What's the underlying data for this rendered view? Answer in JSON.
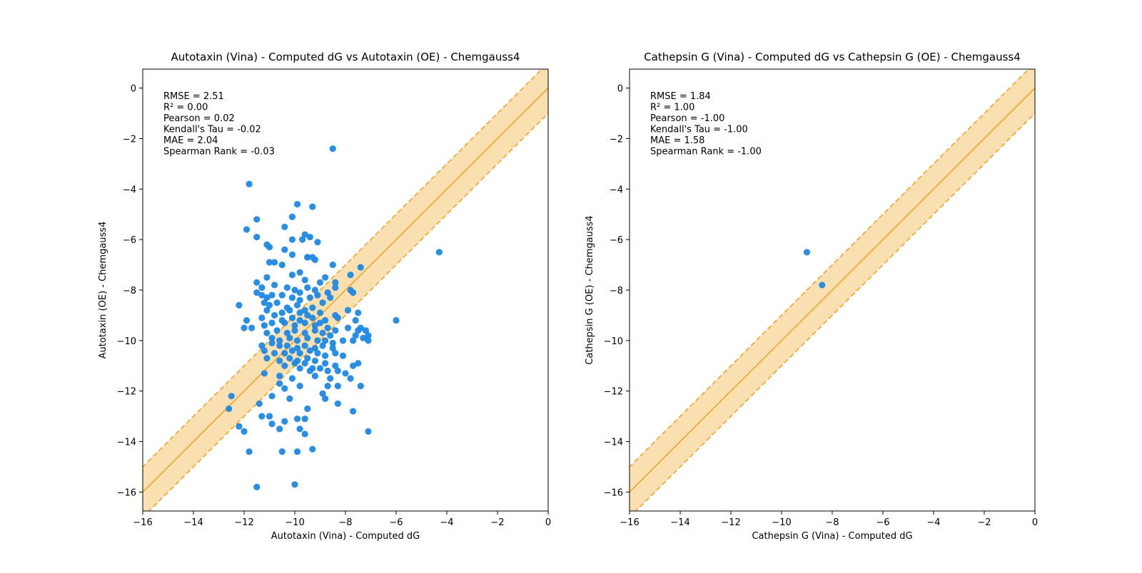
{
  "chart_data": [
    {
      "type": "scatter",
      "title": "Autotaxin (Vina) - Computed dG vs Autotaxin (OE) - Chemgauss4",
      "xlabel": "Autotaxin (Vina) - Computed dG",
      "ylabel": "Autotaxin (OE) - Chemgauss4",
      "xlim": [
        -16,
        0
      ],
      "ylim": [
        -16.75,
        0.75
      ],
      "xticks": [
        -16,
        -14,
        -12,
        -10,
        -8,
        -6,
        -4,
        -2,
        0
      ],
      "yticks": [
        -16,
        -14,
        -12,
        -10,
        -8,
        -6,
        -4,
        -2,
        0
      ],
      "grid": false,
      "identity_line": true,
      "band_width": 1,
      "colors": {
        "points": "#1e88e5",
        "band_fill": "#fae0b0",
        "line": "#f4a020"
      },
      "stats": [
        "RMSE = 2.51",
        "R² = 0.00",
        "Pearson = 0.02",
        "Kendall's Tau = -0.02",
        "MAE = 2.04",
        "Spearman Rank = -0.03"
      ],
      "points": [
        [
          -8.5,
          -2.4
        ],
        [
          -11.8,
          -3.8
        ],
        [
          -9.9,
          -4.6
        ],
        [
          -9.3,
          -4.7
        ],
        [
          -10.1,
          -5.1
        ],
        [
          -11.5,
          -5.2
        ],
        [
          -11.9,
          -5.6
        ],
        [
          -10.4,
          -5.5
        ],
        [
          -11.5,
          -5.9
        ],
        [
          -10.1,
          -6.0
        ],
        [
          -9.7,
          -6.0
        ],
        [
          -9.6,
          -5.8
        ],
        [
          -9.4,
          -5.9
        ],
        [
          -9.1,
          -6.1
        ],
        [
          -11.1,
          -6.2
        ],
        [
          -11.0,
          -6.3
        ],
        [
          -10.4,
          -6.4
        ],
        [
          -10.1,
          -6.6
        ],
        [
          -9.5,
          -6.7
        ],
        [
          -9.2,
          -6.8
        ],
        [
          -9.3,
          -6.7
        ],
        [
          -11.0,
          -6.9
        ],
        [
          -10.8,
          -6.9
        ],
        [
          -10.5,
          -7.0
        ],
        [
          -9.5,
          -6.7
        ],
        [
          -8.5,
          -7.0
        ],
        [
          -7.4,
          -7.1
        ],
        [
          -4.3,
          -6.5
        ],
        [
          -11.1,
          -7.5
        ],
        [
          -10.1,
          -7.4
        ],
        [
          -9.8,
          -7.3
        ],
        [
          -9.6,
          -7.6
        ],
        [
          -9.0,
          -7.7
        ],
        [
          -8.8,
          -7.5
        ],
        [
          -8.4,
          -7.7
        ],
        [
          -7.8,
          -7.4
        ],
        [
          -11.5,
          -7.7
        ],
        [
          -11.3,
          -7.9
        ],
        [
          -10.8,
          -7.8
        ],
        [
          -10.3,
          -7.9
        ],
        [
          -10.0,
          -8.0
        ],
        [
          -9.8,
          -8.1
        ],
        [
          -9.5,
          -7.9
        ],
        [
          -9.2,
          -8.0
        ],
        [
          -8.7,
          -8.1
        ],
        [
          -8.4,
          -7.9
        ],
        [
          -7.8,
          -8.0
        ],
        [
          -7.7,
          -8.1
        ],
        [
          -11.5,
          -8.1
        ],
        [
          -11.3,
          -8.2
        ],
        [
          -11.1,
          -8.3
        ],
        [
          -10.9,
          -8.2
        ],
        [
          -10.5,
          -8.2
        ],
        [
          -10.1,
          -8.3
        ],
        [
          -9.8,
          -8.4
        ],
        [
          -9.4,
          -8.3
        ],
        [
          -9.1,
          -8.2
        ],
        [
          -8.6,
          -8.3
        ],
        [
          -12.2,
          -8.6
        ],
        [
          -11.2,
          -8.5
        ],
        [
          -11.0,
          -8.6
        ],
        [
          -10.7,
          -8.5
        ],
        [
          -10.3,
          -8.7
        ],
        [
          -9.9,
          -8.6
        ],
        [
          -9.6,
          -8.8
        ],
        [
          -9.3,
          -8.7
        ],
        [
          -8.9,
          -8.5
        ],
        [
          -11.1,
          -8.8
        ],
        [
          -10.5,
          -8.9
        ],
        [
          -10.2,
          -8.8
        ],
        [
          -9.8,
          -8.9
        ],
        [
          -9.5,
          -9.0
        ],
        [
          -9.0,
          -8.9
        ],
        [
          -8.4,
          -9.0
        ],
        [
          -7.9,
          -8.8
        ],
        [
          -7.5,
          -8.9
        ],
        [
          -11.9,
          -9.2
        ],
        [
          -11.3,
          -9.1
        ],
        [
          -10.8,
          -9.0
        ],
        [
          -10.5,
          -9.2
        ],
        [
          -10.1,
          -9.1
        ],
        [
          -9.8,
          -9.2
        ],
        [
          -9.3,
          -9.1
        ],
        [
          -8.8,
          -9.2
        ],
        [
          -8.3,
          -9.1
        ],
        [
          -7.6,
          -9.2
        ],
        [
          -6.0,
          -9.2
        ],
        [
          -12.0,
          -9.5
        ],
        [
          -11.7,
          -9.5
        ],
        [
          -11.2,
          -9.4
        ],
        [
          -10.9,
          -9.3
        ],
        [
          -10.4,
          -9.3
        ],
        [
          -10.0,
          -9.4
        ],
        [
          -9.6,
          -9.3
        ],
        [
          -9.2,
          -9.4
        ],
        [
          -9.0,
          -9.3
        ],
        [
          -8.7,
          -9.5
        ],
        [
          -8.4,
          -9.6
        ],
        [
          -7.9,
          -9.5
        ],
        [
          -7.5,
          -9.6
        ],
        [
          -7.2,
          -9.6
        ],
        [
          -7.4,
          -9.5
        ],
        [
          -11.1,
          -9.7
        ],
        [
          -10.7,
          -9.6
        ],
        [
          -10.3,
          -9.7
        ],
        [
          -10.0,
          -9.6
        ],
        [
          -9.6,
          -9.7
        ],
        [
          -9.2,
          -9.6
        ],
        [
          -8.9,
          -9.7
        ],
        [
          -8.6,
          -9.8
        ],
        [
          -7.6,
          -9.8
        ],
        [
          -7.1,
          -9.8
        ],
        [
          -7.3,
          -9.9
        ],
        [
          -10.9,
          -9.9
        ],
        [
          -10.6,
          -10.0
        ],
        [
          -10.2,
          -9.9
        ],
        [
          -9.9,
          -10.0
        ],
        [
          -9.5,
          -9.9
        ],
        [
          -9.1,
          -10.0
        ],
        [
          -8.8,
          -10.0
        ],
        [
          -8.5,
          -10.1
        ],
        [
          -8.1,
          -10.0
        ],
        [
          -7.7,
          -10.0
        ],
        [
          -7.1,
          -10.0
        ],
        [
          -11.3,
          -10.2
        ],
        [
          -10.9,
          -10.1
        ],
        [
          -10.6,
          -10.2
        ],
        [
          -10.3,
          -10.2
        ],
        [
          -9.9,
          -10.3
        ],
        [
          -9.6,
          -10.2
        ],
        [
          -9.2,
          -10.3
        ],
        [
          -8.9,
          -10.2
        ],
        [
          -8.5,
          -10.3
        ],
        [
          -11.2,
          -10.4
        ],
        [
          -10.8,
          -10.5
        ],
        [
          -10.4,
          -10.5
        ],
        [
          -10.1,
          -10.4
        ],
        [
          -9.8,
          -10.5
        ],
        [
          -9.4,
          -10.4
        ],
        [
          -9.1,
          -10.5
        ],
        [
          -8.8,
          -10.6
        ],
        [
          -8.4,
          -10.5
        ],
        [
          -8.1,
          -10.6
        ],
        [
          -11.1,
          -10.7
        ],
        [
          -10.6,
          -10.8
        ],
        [
          -10.2,
          -10.7
        ],
        [
          -9.9,
          -10.8
        ],
        [
          -9.5,
          -10.7
        ],
        [
          -9.2,
          -10.8
        ],
        [
          -8.8,
          -10.9
        ],
        [
          -8.4,
          -11.0
        ],
        [
          -7.7,
          -11.0
        ],
        [
          -7.5,
          -10.9
        ],
        [
          -10.0,
          -10.9
        ],
        [
          -9.6,
          -10.9
        ],
        [
          -9.3,
          -11.1
        ],
        [
          -9.0,
          -11.1
        ],
        [
          -8.7,
          -11.2
        ],
        [
          -8.3,
          -11.2
        ],
        [
          -8.0,
          -11.3
        ],
        [
          -10.4,
          -11.0
        ],
        [
          -9.8,
          -11.1
        ],
        [
          -9.4,
          -11.2
        ],
        [
          -11.2,
          -11.3
        ],
        [
          -10.6,
          -11.4
        ],
        [
          -10.1,
          -11.5
        ],
        [
          -9.2,
          -11.4
        ],
        [
          -8.6,
          -11.5
        ],
        [
          -7.8,
          -11.5
        ],
        [
          -10.6,
          -11.7
        ],
        [
          -10.4,
          -11.9
        ],
        [
          -9.8,
          -11.8
        ],
        [
          -8.7,
          -11.8
        ],
        [
          -8.3,
          -11.8
        ],
        [
          -7.4,
          -11.8
        ],
        [
          -8.9,
          -12.1
        ],
        [
          -12.5,
          -12.2
        ],
        [
          -10.9,
          -12.2
        ],
        [
          -10.2,
          -12.3
        ],
        [
          -8.8,
          -12.3
        ],
        [
          -12.6,
          -12.7
        ],
        [
          -11.4,
          -12.5
        ],
        [
          -9.5,
          -12.7
        ],
        [
          -8.3,
          -12.5
        ],
        [
          -7.7,
          -12.8
        ],
        [
          -11.3,
          -13.0
        ],
        [
          -11.0,
          -13.0
        ],
        [
          -10.4,
          -13.2
        ],
        [
          -9.9,
          -13.1
        ],
        [
          -9.6,
          -13.1
        ],
        [
          -12.2,
          -13.4
        ],
        [
          -10.9,
          -13.3
        ],
        [
          -12.0,
          -13.6
        ],
        [
          -10.6,
          -13.5
        ],
        [
          -9.8,
          -13.5
        ],
        [
          -9.6,
          -13.7
        ],
        [
          -7.1,
          -13.6
        ],
        [
          -11.8,
          -14.4
        ],
        [
          -10.5,
          -14.4
        ],
        [
          -9.9,
          -14.4
        ],
        [
          -9.3,
          -14.3
        ],
        [
          -11.5,
          -15.8
        ],
        [
          -10.0,
          -15.7
        ]
      ]
    },
    {
      "type": "scatter",
      "title": "Cathepsin G (Vina) - Computed dG vs Cathepsin G (OE) - Chemgauss4",
      "xlabel": "Cathepsin G (Vina) - Computed dG",
      "ylabel": "Cathepsin G (OE) - Chemgauss4",
      "xlim": [
        -16,
        0
      ],
      "ylim": [
        -16.75,
        0.75
      ],
      "xticks": [
        -16,
        -14,
        -12,
        -10,
        -8,
        -6,
        -4,
        -2,
        0
      ],
      "yticks": [
        -16,
        -14,
        -12,
        -10,
        -8,
        -6,
        -4,
        -2,
        0
      ],
      "grid": false,
      "identity_line": true,
      "band_width": 1,
      "colors": {
        "points": "#1e88e5",
        "band_fill": "#fae0b0",
        "line": "#f4a020"
      },
      "stats": [
        "RMSE = 1.84",
        "R² = 1.00",
        "Pearson = -1.00",
        "Kendall's Tau = -1.00",
        "MAE = 1.58",
        "Spearman Rank = -1.00"
      ],
      "points": [
        [
          -9.0,
          -6.5
        ],
        [
          -8.4,
          -7.8
        ]
      ]
    }
  ]
}
